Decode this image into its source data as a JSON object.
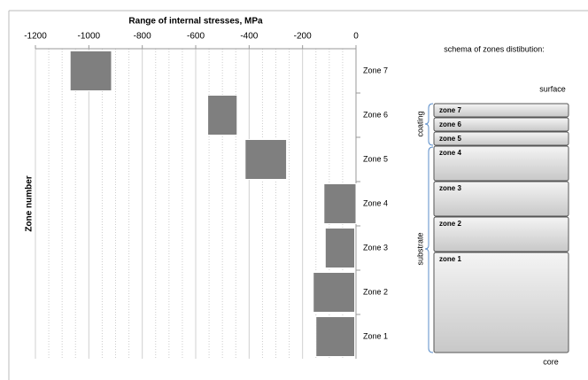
{
  "chart_data": {
    "type": "range-bar",
    "title": "Range of internal stresses, MPa",
    "y_label": "Zone number",
    "categories": [
      "Zone 7",
      "Zone 6",
      "Zone 5",
      "Zone 4",
      "Zone 3",
      "Zone 2",
      "Zone 1"
    ],
    "values": [
      [
        -1070,
        -915
      ],
      [
        -555,
        -445
      ],
      [
        -415,
        -260
      ],
      [
        -120,
        0
      ],
      [
        -115,
        -5
      ],
      [
        -160,
        -5
      ],
      [
        -150,
        -5
      ]
    ],
    "color": "#7f7f7f",
    "xlim": [
      -1200,
      0
    ],
    "xticks": [
      -1200,
      -1000,
      -800,
      -600,
      -400,
      -200,
      0
    ],
    "xminorticks": [
      -1150,
      -1100,
      -1050,
      -950,
      -900,
      -850,
      -750,
      -700,
      -650,
      -550,
      -500,
      -450,
      -350,
      -300,
      -250,
      -150,
      -100,
      -50
    ],
    "grid": true
  },
  "schema": {
    "title": "schema of zones distibution:",
    "top": "surface",
    "bottom": "core",
    "groups": [
      "coating",
      "substrate"
    ],
    "zones": [
      "zone 7",
      "zone 6",
      "zone 5",
      "zone 4",
      "zone 3",
      "zone 2",
      "zone 1"
    ]
  }
}
